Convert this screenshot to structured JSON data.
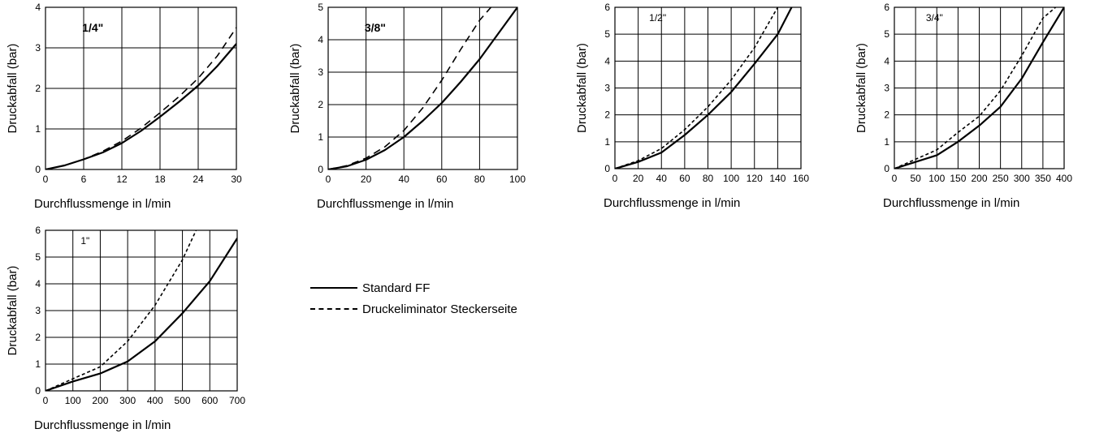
{
  "chart_data": [
    {
      "type": "line",
      "title": "1/4\"",
      "xlabel": "Durchflussmenge in l/min",
      "ylabel": "Druckabfall (bar)",
      "xlim": [
        0,
        30
      ],
      "ylim": [
        0,
        4
      ],
      "xticks": [
        "0",
        "6",
        "12",
        "18",
        "24",
        "30"
      ],
      "yticks": [
        "0",
        "1",
        "2",
        "3",
        "4"
      ],
      "grid": true,
      "series": [
        {
          "name": "Standard FF",
          "style": "solid",
          "x": [
            0,
            3,
            6,
            9,
            12,
            15,
            18,
            21,
            24,
            27,
            30
          ],
          "y": [
            0,
            0.1,
            0.25,
            0.42,
            0.65,
            0.95,
            1.3,
            1.67,
            2.07,
            2.55,
            3.1
          ]
        },
        {
          "name": "Druckeliminator Steckerseite",
          "style": "dashed",
          "x": [
            0,
            3,
            6,
            9,
            12,
            15,
            18,
            21,
            24,
            27,
            30
          ],
          "y": [
            0,
            0.1,
            0.25,
            0.45,
            0.7,
            1.02,
            1.4,
            1.8,
            2.25,
            2.8,
            3.5
          ]
        }
      ]
    },
    {
      "type": "line",
      "title": "3/8\"",
      "xlabel": "Durchflussmenge in l/min",
      "ylabel": "Druckabfall (bar)",
      "xlim": [
        0,
        100
      ],
      "ylim": [
        0,
        5
      ],
      "xticks": [
        "0",
        "20",
        "40",
        "60",
        "80",
        "100"
      ],
      "yticks": [
        "0",
        "1",
        "2",
        "3",
        "4",
        "5"
      ],
      "grid": true,
      "series": [
        {
          "name": "Standard FF",
          "style": "solid",
          "x": [
            0,
            10,
            20,
            30,
            40,
            50,
            60,
            70,
            80,
            90,
            100
          ],
          "y": [
            0,
            0.1,
            0.3,
            0.6,
            1.0,
            1.5,
            2.05,
            2.7,
            3.4,
            4.2,
            5.0
          ]
        },
        {
          "name": "Druckeliminator Steckerseite",
          "style": "dashed",
          "x": [
            0,
            10,
            20,
            30,
            40,
            50,
            60,
            70,
            80,
            86
          ],
          "y": [
            0,
            0.12,
            0.35,
            0.7,
            1.2,
            1.9,
            2.75,
            3.7,
            4.6,
            5.0
          ]
        }
      ]
    },
    {
      "type": "line",
      "title": "1/2\"",
      "xlabel": "Durchflussmenge in l/min",
      "ylabel": "Druckabfall (bar)",
      "xlim": [
        0,
        160
      ],
      "ylim": [
        0,
        6
      ],
      "xticks": [
        "0",
        "20",
        "40",
        "60",
        "80",
        "100",
        "120",
        "140",
        "160"
      ],
      "yticks": [
        "0",
        "1",
        "2",
        "3",
        "4",
        "5",
        "6"
      ],
      "grid": true,
      "series": [
        {
          "name": "Standard FF",
          "style": "solid",
          "x": [
            0,
            20,
            40,
            60,
            80,
            100,
            120,
            140,
            152
          ],
          "y": [
            0,
            0.25,
            0.6,
            1.25,
            2.0,
            2.85,
            3.9,
            5.0,
            6.0
          ]
        },
        {
          "name": "Druckeliminator Steckerseite",
          "style": "dashed",
          "x": [
            0,
            20,
            40,
            60,
            80,
            100,
            120,
            140
          ],
          "y": [
            0,
            0.3,
            0.75,
            1.45,
            2.3,
            3.3,
            4.5,
            6.0
          ]
        }
      ]
    },
    {
      "type": "line",
      "title": "3/4\"",
      "xlabel": "Durchflussmenge in l/min",
      "ylabel": "Druckabfall (bar)",
      "xlim": [
        0,
        400
      ],
      "ylim": [
        0,
        6
      ],
      "xticks": [
        "0",
        "50",
        "100",
        "150",
        "200",
        "250",
        "300",
        "350",
        "400"
      ],
      "yticks": [
        "0",
        "1",
        "2",
        "3",
        "4",
        "5",
        "6"
      ],
      "grid": true,
      "series": [
        {
          "name": "Standard FF",
          "style": "solid",
          "x": [
            0,
            50,
            100,
            150,
            200,
            250,
            300,
            350,
            400
          ],
          "y": [
            0,
            0.25,
            0.5,
            1.0,
            1.6,
            2.3,
            3.35,
            4.7,
            6.0
          ]
        },
        {
          "name": "Druckeliminator Steckerseite",
          "style": "dashed",
          "x": [
            0,
            50,
            100,
            150,
            200,
            250,
            300,
            350,
            380
          ],
          "y": [
            0,
            0.35,
            0.7,
            1.35,
            1.95,
            2.9,
            4.2,
            5.6,
            6.0
          ]
        }
      ]
    },
    {
      "type": "line",
      "title": "1\"",
      "xlabel": "Durchflussmenge in l/min",
      "ylabel": "Druckabfall (bar)",
      "xlim": [
        0,
        700
      ],
      "ylim": [
        0,
        6
      ],
      "xticks": [
        "0",
        "100",
        "200",
        "300",
        "400",
        "500",
        "600",
        "700"
      ],
      "yticks": [
        "0",
        "1",
        "2",
        "3",
        "4",
        "5",
        "6"
      ],
      "grid": true,
      "series": [
        {
          "name": "Standard FF",
          "style": "solid",
          "x": [
            0,
            100,
            200,
            300,
            400,
            500,
            600,
            700
          ],
          "y": [
            0,
            0.35,
            0.65,
            1.1,
            1.85,
            2.9,
            4.1,
            5.7
          ]
        },
        {
          "name": "Druckeliminator Steckerseite",
          "style": "dashed",
          "x": [
            0,
            100,
            200,
            300,
            400,
            500,
            550
          ],
          "y": [
            0,
            0.45,
            0.9,
            1.85,
            3.2,
            4.9,
            6.0
          ]
        }
      ]
    }
  ],
  "legend": {
    "items": [
      {
        "label": "Standard FF",
        "style": "solid"
      },
      {
        "label": "Druckeliminator Steckerseite",
        "style": "dashed"
      }
    ]
  }
}
